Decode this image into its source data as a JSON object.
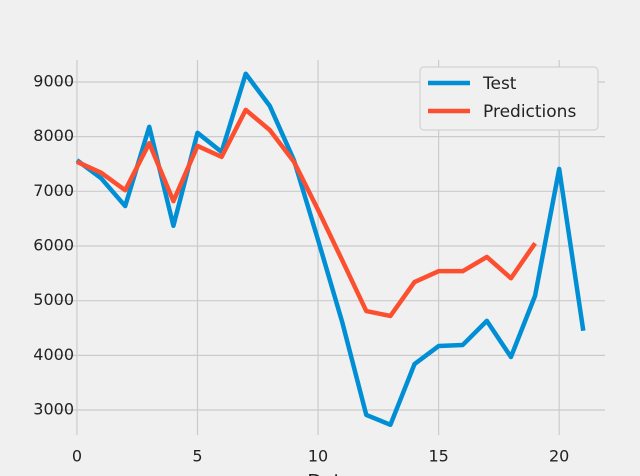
{
  "chart_data": {
    "type": "line",
    "x": [
      0,
      1,
      2,
      3,
      4,
      5,
      6,
      7,
      8,
      9,
      10,
      11,
      12,
      13,
      14,
      15,
      16,
      17,
      18,
      19,
      20,
      21
    ],
    "series": [
      {
        "name": "Test",
        "color": "#008fd5",
        "values": [
          7570,
          7240,
          6730,
          8180,
          6370,
          8070,
          7720,
          9150,
          8560,
          7570,
          6110,
          4610,
          2910,
          2730,
          3840,
          4170,
          4190,
          4630,
          3970,
          5090,
          7410,
          4450
        ]
      },
      {
        "name": "Predictions",
        "color": "#fc4f30",
        "values": [
          7540,
          7340,
          7020,
          7880,
          6820,
          7830,
          7630,
          8490,
          8120,
          7540,
          6660,
          5740,
          4810,
          4720,
          5340,
          5540,
          5540,
          5800,
          5410,
          6050,
          null,
          null
        ]
      }
    ],
    "xlabel": "Date",
    "xlim": [
      -0.91,
      21.9
    ],
    "xticks": [
      0,
      5,
      10,
      15,
      20
    ],
    "ylim": [
      2543,
      9402
    ],
    "yticks": [
      3000,
      4000,
      5000,
      6000,
      7000,
      8000,
      9000
    ],
    "grid": true,
    "legend": "upper right"
  }
}
